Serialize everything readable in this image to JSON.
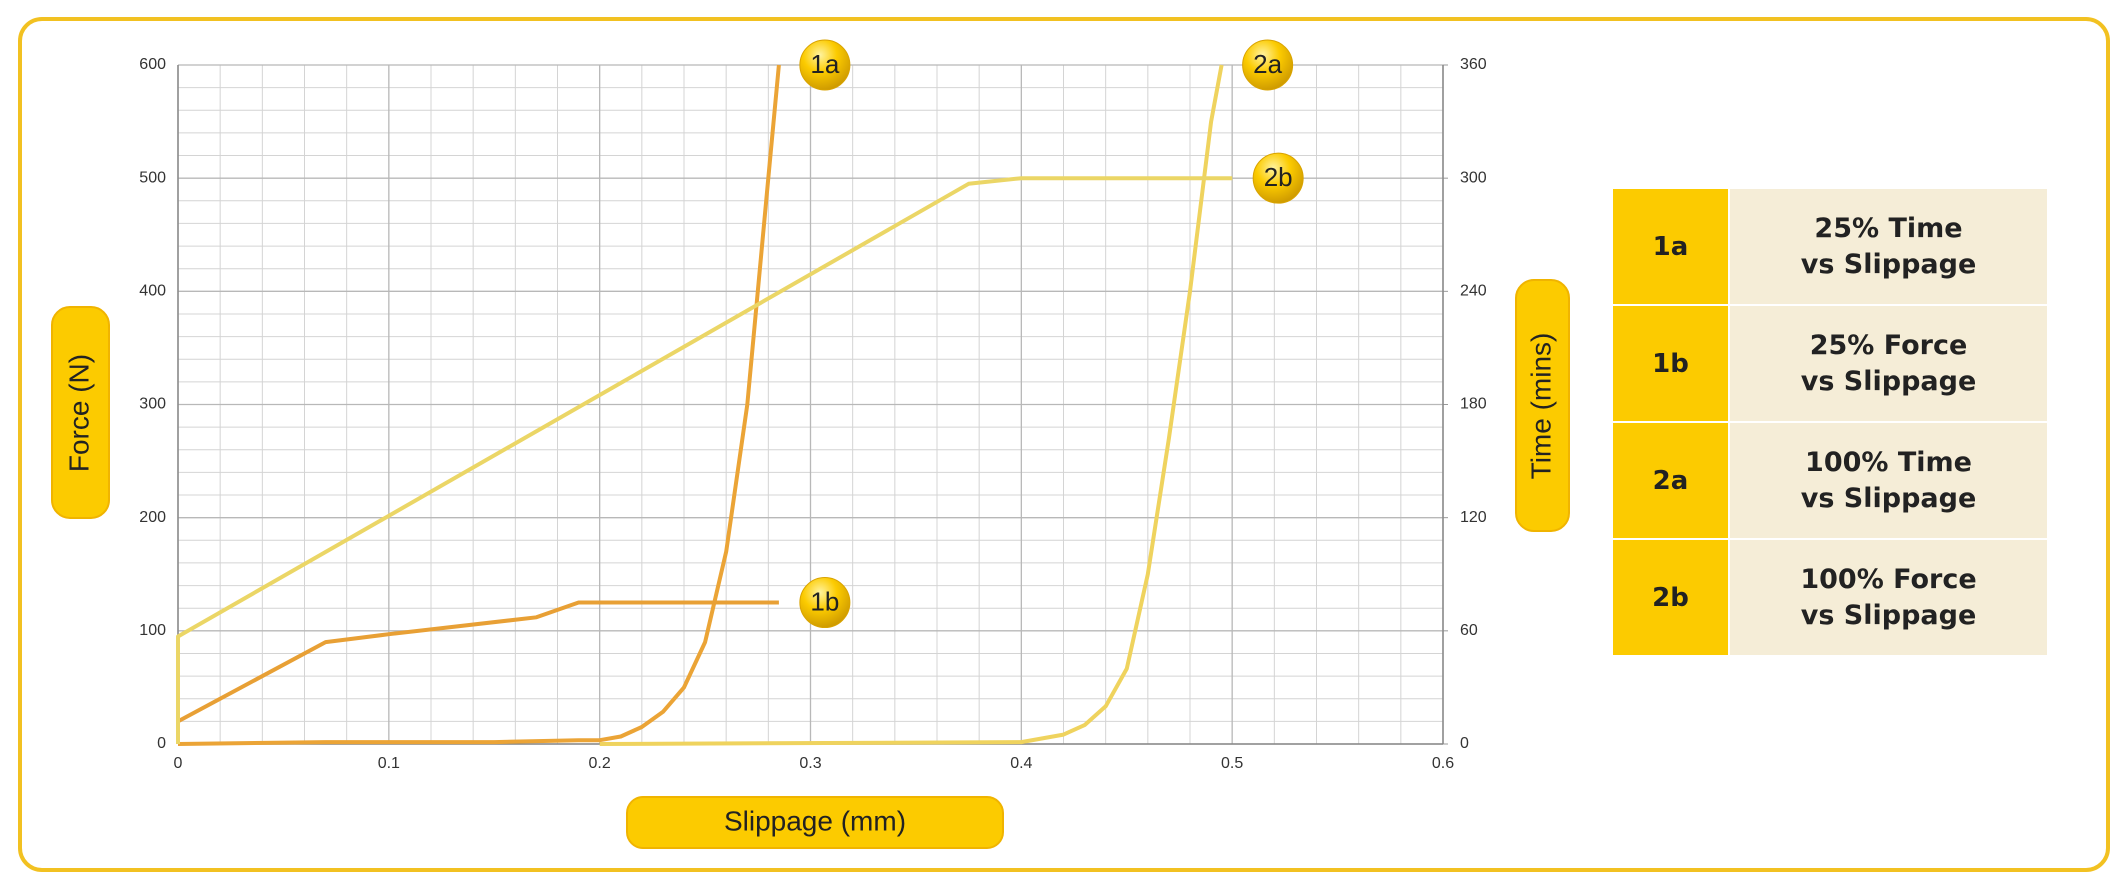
{
  "chart_data": {
    "type": "line",
    "x_label": "Slippage (mm)",
    "y_label": "Force (N)",
    "y2_label": "Time (mins)",
    "xlim": [
      0,
      0.6
    ],
    "xticks": [
      0,
      0.1,
      0.2,
      0.3,
      0.4,
      0.5,
      0.6
    ],
    "ylim": [
      0,
      600
    ],
    "yticks": [
      0,
      100,
      200,
      300,
      400,
      500,
      600
    ],
    "y2lim": [
      0,
      360
    ],
    "y2ticks": [
      0,
      60,
      120,
      180,
      240,
      300,
      360
    ],
    "grid": true,
    "series": [
      {
        "name": "1a",
        "description": "25% Time\nvs Slippage",
        "color": "#EBA436",
        "axis": "y2",
        "x": [
          0,
          0.07,
          0.15,
          0.19,
          0.2,
          0.21,
          0.22,
          0.23,
          0.24,
          0.25,
          0.26,
          0.27,
          0.275,
          0.28,
          0.285
        ],
        "values": [
          0,
          1,
          1,
          2,
          2,
          4,
          9,
          17,
          30,
          54,
          102,
          180,
          240,
          300,
          360
        ]
      },
      {
        "name": "1b",
        "description": "25% Force\nvs Slippage",
        "color": "#E8A035",
        "axis": "y",
        "x": [
          0,
          0,
          0.03,
          0.07,
          0.1,
          0.17,
          0.19,
          0.285
        ],
        "values": [
          0,
          20,
          50,
          90,
          97,
          112,
          125,
          125
        ]
      },
      {
        "name": "2a",
        "description": "100% Time\nvs Slippage",
        "color": "#EFD35E",
        "axis": "y2",
        "x": [
          0.2,
          0.4,
          0.42,
          0.43,
          0.44,
          0.45,
          0.46,
          0.47,
          0.48,
          0.49,
          0.495
        ],
        "values": [
          0,
          1,
          5,
          10,
          20,
          40,
          90,
          162,
          240,
          330,
          360
        ]
      },
      {
        "name": "2b",
        "description": "100% Force\nvs Slippage",
        "color": "#EBD666",
        "axis": "y",
        "x": [
          0,
          0,
          0.375,
          0.4,
          0.5
        ],
        "values": [
          0,
          95,
          495,
          500,
          500
        ]
      }
    ]
  }
}
